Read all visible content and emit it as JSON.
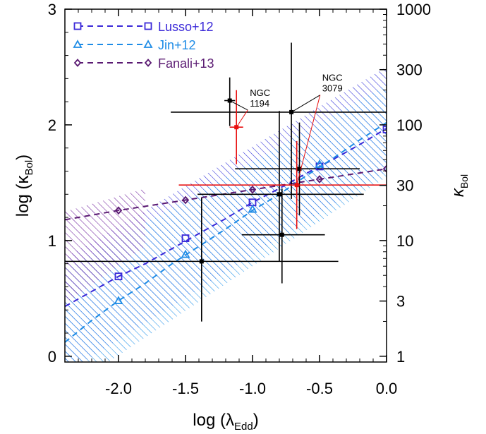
{
  "chart_data": {
    "type": "scatter",
    "xlabel": "log (λ",
    "xlabel_sub": "Edd",
    "xlabel_close": ")",
    "ylabel": "log (κ",
    "ylabel_sub": "Bol",
    "ylabel_close": ")",
    "ylabel_right": "κ",
    "ylabel_right_sub": "Bol",
    "xlim": [
      -2.4,
      0.0
    ],
    "ylim": [
      -0.05,
      3.0
    ],
    "x_ticks": [
      {
        "value": -2.0,
        "label": "-2.0"
      },
      {
        "value": -1.5,
        "label": "-1.5"
      },
      {
        "value": -1.0,
        "label": "-1.0"
      },
      {
        "value": -0.5,
        "label": "-0.5"
      },
      {
        "value": 0.0,
        "label": "0.0"
      }
    ],
    "y_ticks": [
      {
        "value": 0,
        "label": "0"
      },
      {
        "value": 1,
        "label": "1"
      },
      {
        "value": 2,
        "label": "2"
      },
      {
        "value": 3,
        "label": "3"
      }
    ],
    "y_right_ticks": [
      {
        "value": 1,
        "label": "1"
      },
      {
        "value": 3,
        "label": "3"
      },
      {
        "value": 10,
        "label": "10"
      },
      {
        "value": 30,
        "label": "30"
      },
      {
        "value": 100,
        "label": "100"
      },
      {
        "value": 300,
        "label": "300"
      },
      {
        "value": 1000,
        "label": "1000"
      }
    ],
    "y_right_scale": "log",
    "legend_position": "top-left",
    "grid": false,
    "bands": [
      {
        "name": "Lusso+12",
        "color": "#2a2ad8",
        "x": [
          -2.4,
          0.0
        ],
        "lower": [
          -0.15,
          1.6
        ],
        "upper": [
          0.85,
          2.5
        ]
      },
      {
        "name": "Jin+12",
        "color": "#1e90e8",
        "x": [
          -2.4,
          0.0
        ],
        "lower": [
          -0.3,
          1.55
        ],
        "upper": [
          0.75,
          2.35
        ]
      },
      {
        "name": "Fanali+13",
        "color": "#6a1a9a",
        "x": [
          -2.4,
          -1.8
        ],
        "lower": [
          0.45,
          0.95
        ],
        "upper": [
          1.25,
          1.45
        ]
      }
    ],
    "series": [
      {
        "name": "Lusso+12",
        "color": "#3a28d8",
        "marker": "square",
        "line_x": [
          -2.4,
          -2.2,
          -2.0,
          -1.8,
          -1.6,
          -1.4,
          -1.2,
          -1.0,
          -0.8,
          -0.6,
          -0.4,
          -0.2,
          0.0
        ],
        "line_y": [
          0.43,
          0.56,
          0.69,
          0.8,
          0.93,
          1.06,
          1.19,
          1.33,
          1.45,
          1.58,
          1.7,
          1.83,
          1.97
        ],
        "points_x": [
          -2.0,
          -1.5,
          -1.0,
          -0.5,
          0.0
        ],
        "points_y": [
          0.69,
          1.02,
          1.33,
          1.64,
          1.96
        ]
      },
      {
        "name": "Jin+12",
        "color": "#1e8ce6",
        "marker": "triangle",
        "line_x": [
          -2.4,
          -2.2,
          -2.0,
          -1.8,
          -1.6,
          -1.4,
          -1.2,
          -1.0,
          -0.8,
          -0.6,
          -0.4,
          -0.2,
          0.0
        ],
        "line_y": [
          0.12,
          0.31,
          0.48,
          0.63,
          0.8,
          0.95,
          1.1,
          1.26,
          1.4,
          1.56,
          1.71,
          1.87,
          2.02
        ],
        "points_x": [
          -2.0,
          -1.5,
          -1.0,
          -0.5
        ],
        "points_y": [
          0.48,
          0.88,
          1.27,
          1.66
        ]
      },
      {
        "name": "Fanali+13",
        "color": "#5a1a72",
        "marker": "diamond",
        "line_x": [
          -2.4,
          -2.0,
          -1.5,
          -1.0,
          -0.5,
          0.0
        ],
        "line_y": [
          1.18,
          1.26,
          1.35,
          1.44,
          1.53,
          1.62
        ],
        "points_x": [
          -2.0,
          -1.5,
          -1.0,
          -0.5,
          0.0
        ],
        "points_y": [
          1.26,
          1.35,
          1.44,
          1.53,
          1.62
        ]
      }
    ],
    "error_points": [
      {
        "x": -1.38,
        "y": 0.82,
        "xerr": [
          1.02,
          1.02
        ],
        "yerr": [
          0.52,
          0.55
        ],
        "color": "#000000"
      },
      {
        "x": -0.78,
        "y": 1.05,
        "xerr": [
          0.3,
          0.32
        ],
        "yerr": [
          0.42,
          0.4
        ],
        "color": "#000000"
      },
      {
        "x": -0.8,
        "y": 1.4,
        "xerr": [
          0.61,
          0.63
        ],
        "yerr": [
          0.58,
          0.72
        ],
        "color": "#000000"
      },
      {
        "x": -0.65,
        "y": 1.62,
        "xerr": [
          0.48,
          0.45
        ],
        "yerr": [
          0.4,
          0.4
        ],
        "color": "#000000"
      },
      {
        "x": -0.71,
        "y": 2.11,
        "xerr": [
          0.9,
          0.71
        ],
        "yerr": [
          0.75,
          0.6
        ],
        "color": "#000000"
      },
      {
        "x": -1.17,
        "y": 2.21,
        "xerr": [
          0.04,
          0.04
        ],
        "yerr": [
          0.22,
          0.2
        ],
        "color": "#000000"
      },
      {
        "x": -1.12,
        "y": 1.98,
        "xerr": [
          0.05,
          0.05
        ],
        "yerr": [
          0.32,
          0.32
        ],
        "color": "#e81010"
      },
      {
        "x": -0.67,
        "y": 1.48,
        "xerr": [
          0.88,
          0.67
        ],
        "yerr": [
          0.38,
          0.38
        ],
        "color": "#e81010"
      }
    ],
    "annotations": [
      {
        "lines": [
          "NGC",
          "1194"
        ],
        "x": -1.02,
        "y": 2.25,
        "arrow_to": [
          [
            -1.17,
            2.21
          ],
          [
            -1.12,
            1.98
          ]
        ]
      },
      {
        "lines": [
          "NGC",
          "3079"
        ],
        "x": -0.48,
        "y": 2.38,
        "arrow_to": [
          [
            -0.71,
            2.11
          ],
          [
            -0.67,
            1.48
          ]
        ]
      }
    ]
  }
}
